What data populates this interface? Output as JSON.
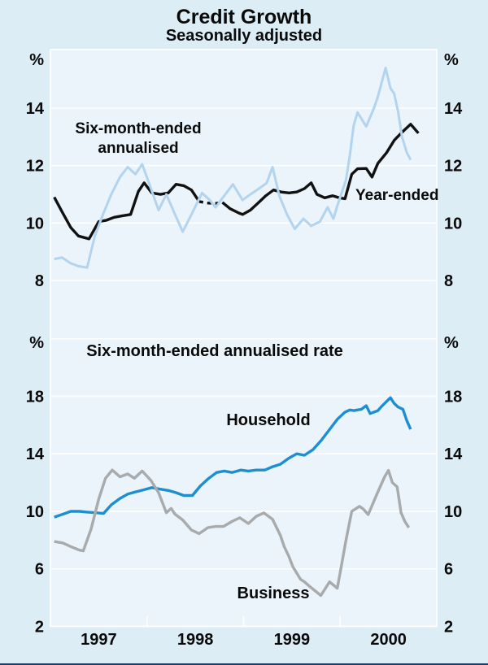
{
  "chart_data": {
    "type": "line",
    "title": "Credit Growth",
    "subtitle": "Seasonally adjusted",
    "background": {
      "outer": "#dcedf5",
      "plot": "#eaf4fa",
      "grid": "#ffffff"
    },
    "x": {
      "range": [
        1996.5,
        2000.5
      ],
      "tick_marks": [
        1997.5,
        1998.5,
        1999.5
      ],
      "year_labels": [
        {
          "year": 1997,
          "label": "1997"
        },
        {
          "year": 1998,
          "label": "1998"
        },
        {
          "year": 1999,
          "label": "1999"
        },
        {
          "year": 2000,
          "label": "2000"
        }
      ]
    },
    "annotations": {
      "six_month_1": "Six-month-ended",
      "six_month_2": "annualised",
      "year_ended": "Year-ended",
      "panel2_title": "Six-month-ended annualised rate",
      "household": "Household",
      "business": "Business"
    },
    "panels": [
      {
        "name": "credit-growth-top-panel",
        "unit": "%",
        "y_ticks": [
          {
            "v": 14,
            "label": "14"
          },
          {
            "v": 12,
            "label": "12"
          },
          {
            "v": 10,
            "label": "10"
          },
          {
            "v": 8,
            "label": "8"
          }
        ],
        "grid_extra": [],
        "series": [
          {
            "id": "year-ended",
            "name": "Year-ended",
            "color": "#111111",
            "width": 3.4,
            "dash_between": [
              1998.05,
              1998.27
            ],
            "points": [
              [
                1996.54,
                10.9
              ],
              [
                1996.62,
                10.4
              ],
              [
                1996.71,
                9.85
              ],
              [
                1996.79,
                9.55
              ],
              [
                1996.9,
                9.45
              ],
              [
                1997.0,
                10.05
              ],
              [
                1997.08,
                10.1
              ],
              [
                1997.16,
                10.2
              ],
              [
                1997.24,
                10.25
              ],
              [
                1997.33,
                10.3
              ],
              [
                1997.41,
                11.1
              ],
              [
                1997.47,
                11.4
              ],
              [
                1997.55,
                11.05
              ],
              [
                1997.64,
                11.0
              ],
              [
                1997.72,
                11.05
              ],
              [
                1997.8,
                11.35
              ],
              [
                1997.88,
                11.3
              ],
              [
                1997.96,
                11.15
              ],
              [
                1998.04,
                10.75
              ],
              [
                1998.12,
                10.7
              ],
              [
                1998.2,
                10.68
              ],
              [
                1998.28,
                10.72
              ],
              [
                1998.36,
                10.5
              ],
              [
                1998.45,
                10.35
              ],
              [
                1998.49,
                10.3
              ],
              [
                1998.57,
                10.45
              ],
              [
                1998.65,
                10.7
              ],
              [
                1998.73,
                10.95
              ],
              [
                1998.81,
                11.15
              ],
              [
                1998.89,
                11.08
              ],
              [
                1998.97,
                11.05
              ],
              [
                1999.05,
                11.08
              ],
              [
                1999.13,
                11.2
              ],
              [
                1999.2,
                11.4
              ],
              [
                1999.26,
                11.0
              ],
              [
                1999.34,
                10.88
              ],
              [
                1999.42,
                10.95
              ],
              [
                1999.49,
                10.88
              ],
              [
                1999.55,
                10.85
              ],
              [
                1999.62,
                11.7
              ],
              [
                1999.68,
                11.89
              ],
              [
                1999.77,
                11.9
              ],
              [
                1999.83,
                11.6
              ],
              [
                1999.89,
                12.08
              ],
              [
                1999.98,
                12.45
              ],
              [
                2000.06,
                12.88
              ],
              [
                2000.14,
                13.16
              ],
              [
                2000.23,
                13.44
              ],
              [
                2000.31,
                13.13
              ]
            ]
          },
          {
            "id": "six-month-ended",
            "name": "Six-month-ended annualised",
            "color": "#b2d4ee",
            "width": 3.0,
            "points": [
              [
                1996.54,
                8.75
              ],
              [
                1996.62,
                8.8
              ],
              [
                1996.71,
                8.6
              ],
              [
                1996.79,
                8.5
              ],
              [
                1996.88,
                8.45
              ],
              [
                1996.96,
                9.55
              ],
              [
                1997.05,
                10.35
              ],
              [
                1997.13,
                11.0
              ],
              [
                1997.22,
                11.6
              ],
              [
                1997.3,
                11.95
              ],
              [
                1997.38,
                11.7
              ],
              [
                1997.45,
                12.05
              ],
              [
                1997.53,
                11.3
              ],
              [
                1997.62,
                10.45
              ],
              [
                1997.7,
                11.0
              ],
              [
                1997.79,
                10.3
              ],
              [
                1997.87,
                9.7
              ],
              [
                1997.96,
                10.3
              ],
              [
                1998.07,
                11.05
              ],
              [
                1998.15,
                10.8
              ],
              [
                1998.21,
                10.55
              ],
              [
                1998.3,
                10.95
              ],
              [
                1998.39,
                11.35
              ],
              [
                1998.49,
                10.8
              ],
              [
                1998.57,
                11.0
              ],
              [
                1998.66,
                11.2
              ],
              [
                1998.74,
                11.4
              ],
              [
                1998.8,
                11.95
              ],
              [
                1998.87,
                10.95
              ],
              [
                1998.95,
                10.3
              ],
              [
                1999.03,
                9.8
              ],
              [
                1999.12,
                10.15
              ],
              [
                1999.2,
                9.9
              ],
              [
                1999.29,
                10.05
              ],
              [
                1999.37,
                10.55
              ],
              [
                1999.43,
                10.15
              ],
              [
                1999.47,
                10.6
              ],
              [
                1999.56,
                11.5
              ],
              [
                1999.6,
                12.35
              ],
              [
                1999.64,
                13.4
              ],
              [
                1999.68,
                13.85
              ],
              [
                1999.77,
                13.36
              ],
              [
                1999.85,
                14.0
              ],
              [
                1999.89,
                14.4
              ],
              [
                1999.97,
                15.4
              ],
              [
                2000.02,
                14.7
              ],
              [
                2000.06,
                14.5
              ],
              [
                2000.1,
                13.87
              ],
              [
                2000.14,
                13.0
              ],
              [
                2000.19,
                12.45
              ],
              [
                2000.23,
                12.2
              ]
            ]
          }
        ]
      },
      {
        "name": "six-month-annualised-rate-bottom-panel",
        "unit": "%",
        "y_ticks": [
          {
            "v": 18,
            "label": "18"
          },
          {
            "v": 14,
            "label": "14"
          },
          {
            "v": 10,
            "label": "10"
          },
          {
            "v": 6,
            "label": "6"
          },
          {
            "v": 2,
            "label": "2"
          }
        ],
        "grid_extra": [
          22
        ],
        "series": [
          {
            "id": "household",
            "name": "Household",
            "color": "#1d8fd1",
            "width": 3.4,
            "points": [
              [
                1996.54,
                9.6
              ],
              [
                1996.63,
                9.8
              ],
              [
                1996.71,
                10.0
              ],
              [
                1996.8,
                10.0
              ],
              [
                1996.88,
                9.95
              ],
              [
                1996.97,
                9.9
              ],
              [
                1997.05,
                9.85
              ],
              [
                1997.13,
                10.45
              ],
              [
                1997.22,
                10.9
              ],
              [
                1997.3,
                11.2
              ],
              [
                1997.38,
                11.35
              ],
              [
                1997.47,
                11.5
              ],
              [
                1997.55,
                11.65
              ],
              [
                1997.63,
                11.55
              ],
              [
                1997.72,
                11.45
              ],
              [
                1997.8,
                11.3
              ],
              [
                1997.88,
                11.1
              ],
              [
                1997.97,
                11.1
              ],
              [
                1998.05,
                11.75
              ],
              [
                1998.13,
                12.25
              ],
              [
                1998.22,
                12.7
              ],
              [
                1998.3,
                12.8
              ],
              [
                1998.38,
                12.7
              ],
              [
                1998.47,
                12.87
              ],
              [
                1998.55,
                12.8
              ],
              [
                1998.63,
                12.87
              ],
              [
                1998.72,
                12.87
              ],
              [
                1998.8,
                13.1
              ],
              [
                1998.88,
                13.27
              ],
              [
                1998.97,
                13.7
              ],
              [
                1999.05,
                14.0
              ],
              [
                1999.13,
                13.9
              ],
              [
                1999.22,
                14.3
              ],
              [
                1999.3,
                14.9
              ],
              [
                1999.38,
                15.6
              ],
              [
                1999.47,
                16.4
              ],
              [
                1999.55,
                16.9
              ],
              [
                1999.6,
                17.05
              ],
              [
                1999.64,
                17.0
              ],
              [
                1999.72,
                17.1
              ],
              [
                1999.77,
                17.35
              ],
              [
                1999.81,
                16.8
              ],
              [
                1999.89,
                17.0
              ],
              [
                1999.93,
                17.3
              ],
              [
                2000.02,
                17.9
              ],
              [
                2000.06,
                17.5
              ],
              [
                2000.1,
                17.25
              ],
              [
                2000.15,
                17.1
              ],
              [
                2000.19,
                16.3
              ],
              [
                2000.23,
                15.7
              ]
            ]
          },
          {
            "id": "business",
            "name": "Business",
            "color": "#a8aaac",
            "width": 3.4,
            "points": [
              [
                1996.54,
                7.9
              ],
              [
                1996.63,
                7.8
              ],
              [
                1996.71,
                7.55
              ],
              [
                1996.8,
                7.3
              ],
              [
                1996.84,
                7.25
              ],
              [
                1996.92,
                8.75
              ],
              [
                1997.0,
                10.85
              ],
              [
                1997.07,
                12.3
              ],
              [
                1997.14,
                12.87
              ],
              [
                1997.22,
                12.4
              ],
              [
                1997.3,
                12.6
              ],
              [
                1997.37,
                12.3
              ],
              [
                1997.45,
                12.8
              ],
              [
                1997.54,
                12.15
              ],
              [
                1997.62,
                11.3
              ],
              [
                1997.7,
                9.9
              ],
              [
                1997.75,
                10.2
              ],
              [
                1997.79,
                9.8
              ],
              [
                1997.87,
                9.4
              ],
              [
                1997.96,
                8.7
              ],
              [
                1998.04,
                8.45
              ],
              [
                1998.13,
                8.87
              ],
              [
                1998.21,
                8.95
              ],
              [
                1998.29,
                8.95
              ],
              [
                1998.38,
                9.3
              ],
              [
                1998.46,
                9.55
              ],
              [
                1998.55,
                9.15
              ],
              [
                1998.63,
                9.65
              ],
              [
                1998.71,
                9.89
              ],
              [
                1998.8,
                9.45
              ],
              [
                1998.88,
                8.35
              ],
              [
                1998.92,
                7.55
              ],
              [
                1998.97,
                6.85
              ],
              [
                1999.01,
                6.15
              ],
              [
                1999.09,
                5.27
              ],
              [
                1999.13,
                5.1
              ],
              [
                1999.18,
                4.8
              ],
              [
                1999.3,
                4.15
              ],
              [
                1999.39,
                5.1
              ],
              [
                1999.47,
                4.65
              ],
              [
                1999.51,
                6.1
              ],
              [
                1999.56,
                8.0
              ],
              [
                1999.62,
                10.0
              ],
              [
                1999.7,
                10.35
              ],
              [
                1999.74,
                10.15
              ],
              [
                1999.79,
                9.77
              ],
              [
                1999.88,
                11.2
              ],
              [
                1999.96,
                12.4
              ],
              [
                2000.0,
                12.85
              ],
              [
                2000.04,
                12.0
              ],
              [
                2000.09,
                11.7
              ],
              [
                2000.13,
                9.9
              ],
              [
                2000.17,
                9.3
              ],
              [
                2000.21,
                8.87
              ]
            ]
          }
        ]
      }
    ]
  }
}
